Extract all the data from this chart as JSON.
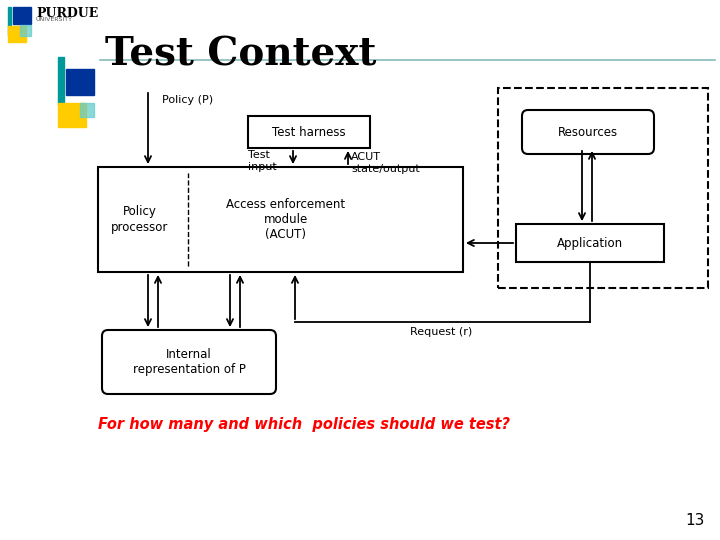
{
  "title": "Test Context",
  "subtitle_question": "For how many and which  policies should we test?",
  "page_number": "13",
  "background_color": "#ffffff",
  "title_fontsize": 28,
  "logo_colors": {
    "teal": "#009999",
    "blue": "#003399",
    "gold": "#FFcc00",
    "teal_light": "#66cccc"
  },
  "diagram": {
    "policy_p_label": "Policy (P)",
    "test_harness_label": "Test harness",
    "test_input_label": "Test\ninput",
    "acut_state_label": "ACUT\nstate/output",
    "policy_processor_label": "Policy\nprocessor",
    "acut_module_label": "Access enforcement\nmodule\n(ACUT)",
    "internal_rep_label": "Internal\nrepresentation of P",
    "request_label": "Request (r)",
    "resources_label": "Resources",
    "application_label": "Application"
  }
}
